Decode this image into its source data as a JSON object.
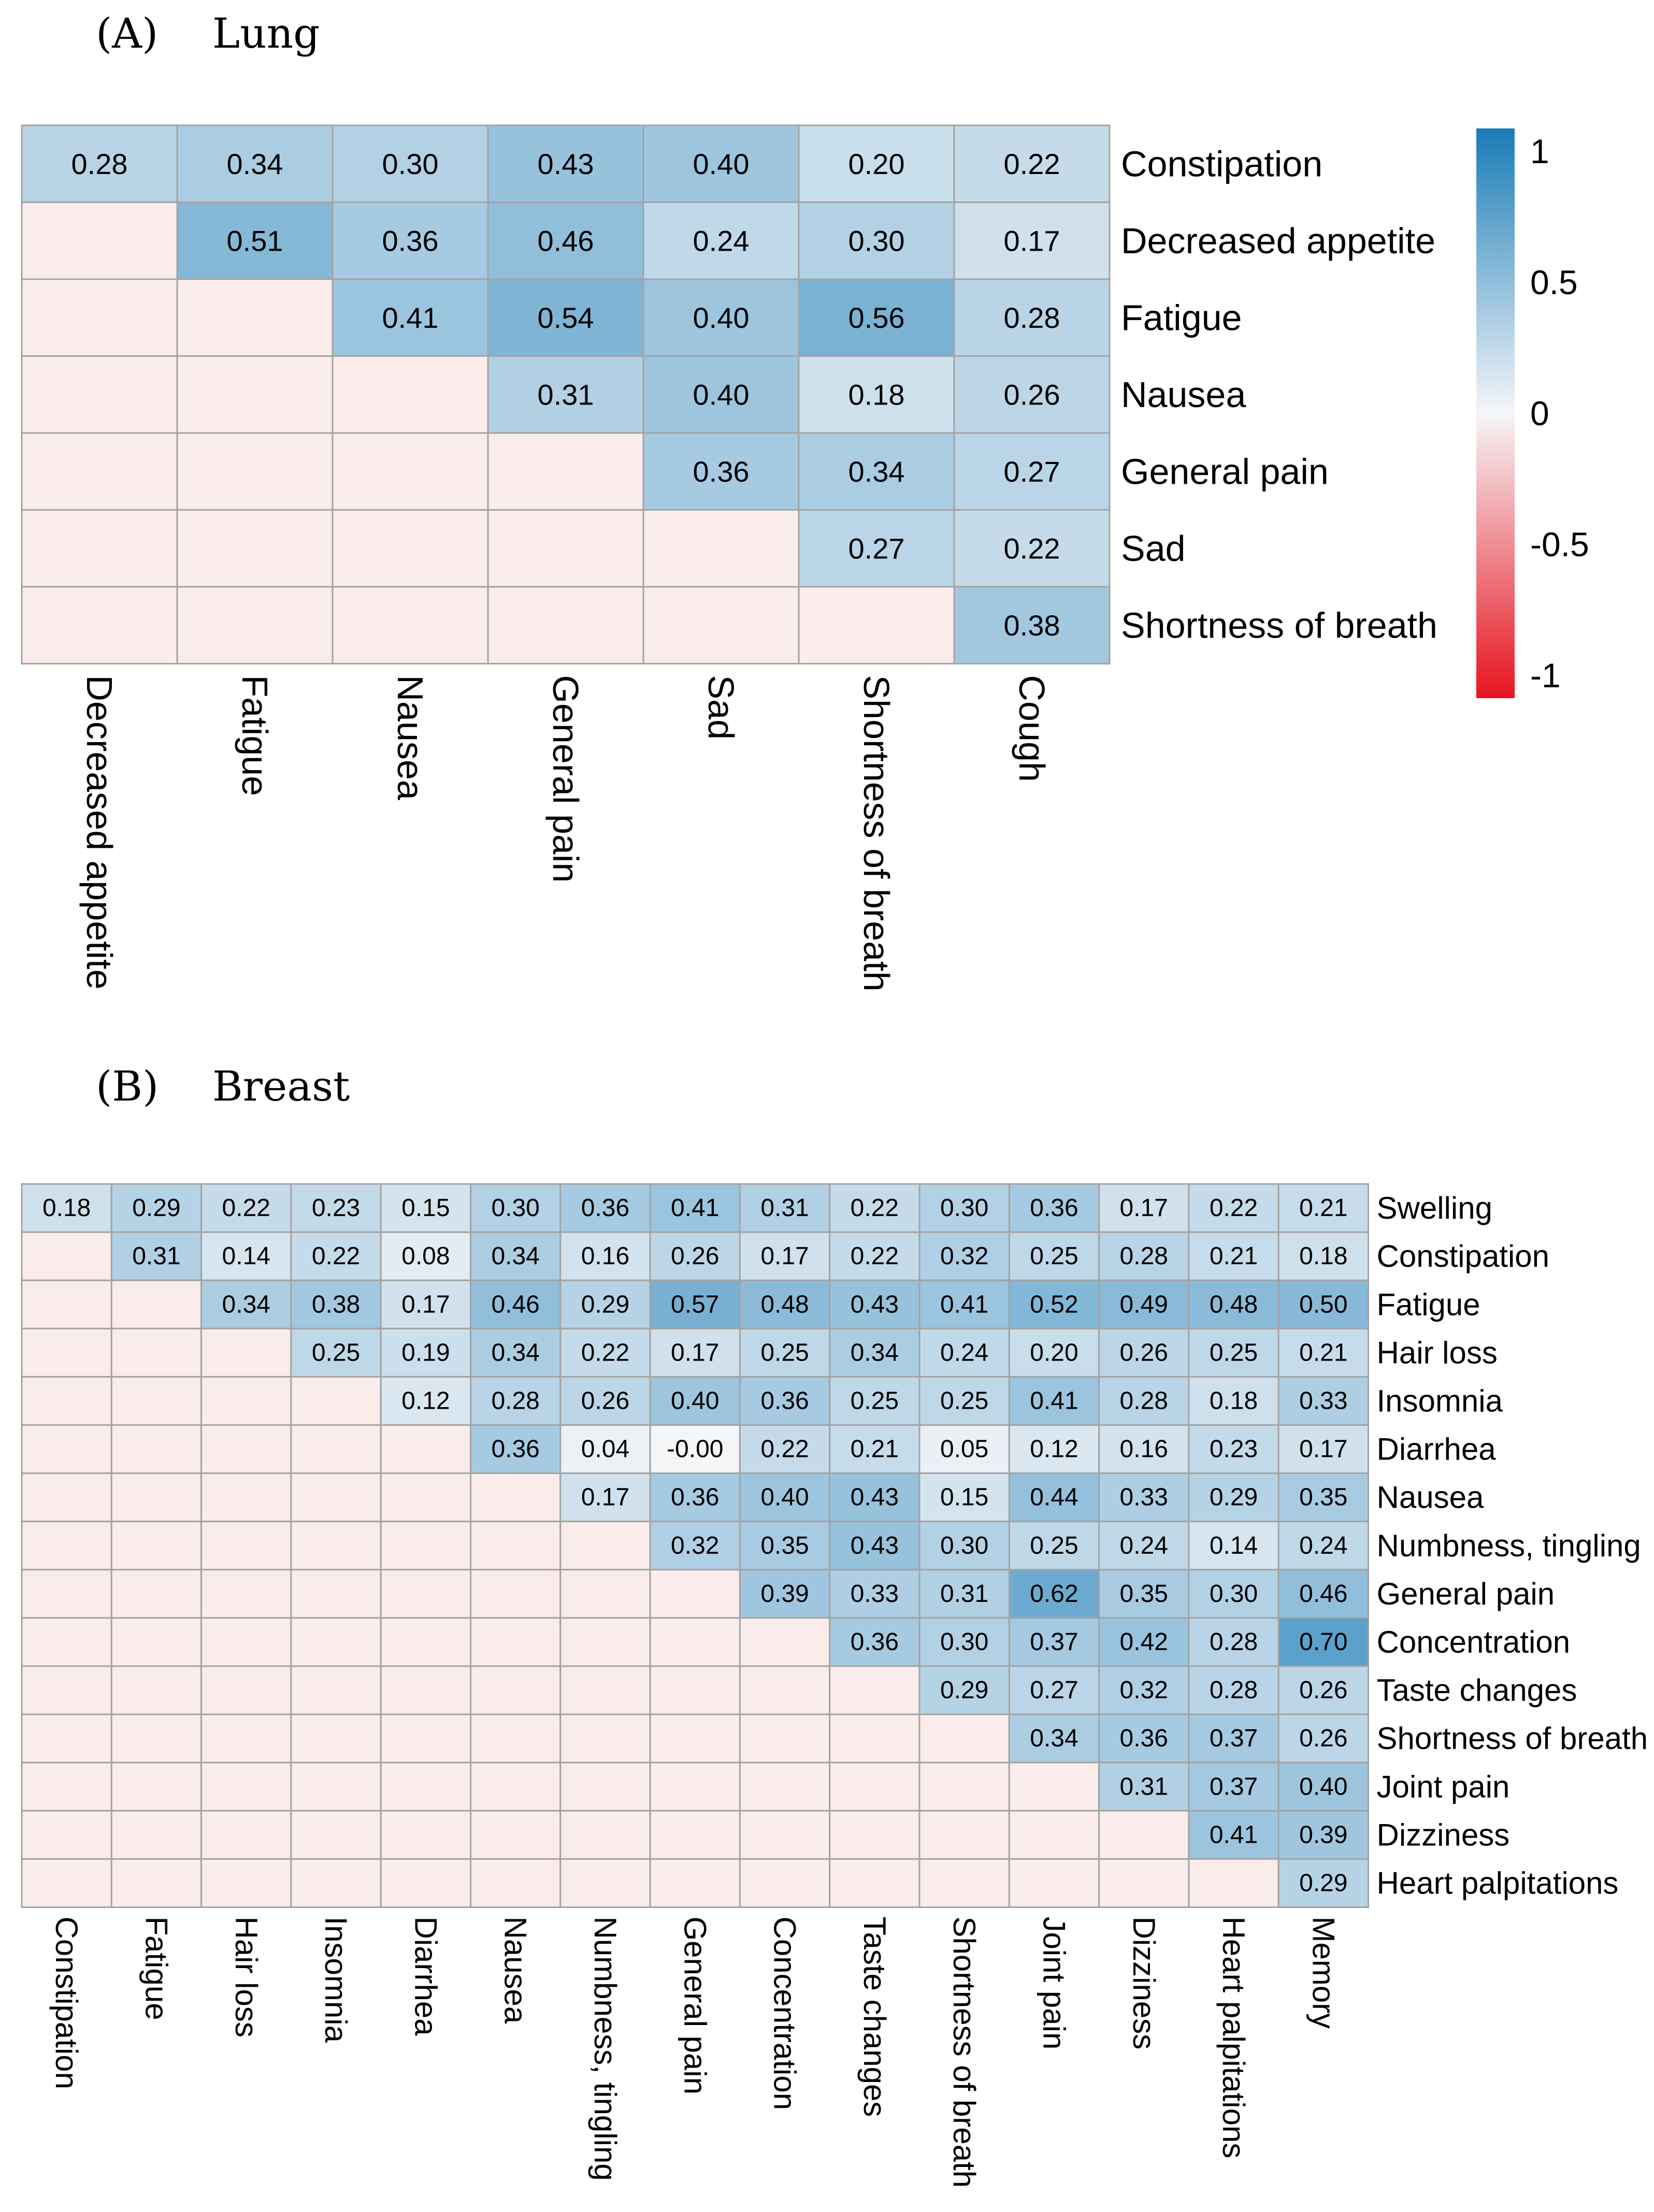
{
  "chart_data": [
    {
      "type": "heatmap",
      "panel_letter": "(A)",
      "panel_title": "Lung",
      "row_labels": [
        "Constipation",
        "Decreased appetite",
        "Fatigue",
        "Nausea",
        "General pain",
        "Sad",
        "Shortness of breath"
      ],
      "col_labels": [
        "Decreased appetite",
        "Fatigue",
        "Nausea",
        "General pain",
        "Sad",
        "Shortness of breath",
        "Cough"
      ],
      "values": [
        [
          0.28,
          0.34,
          0.3,
          0.43,
          0.4,
          0.2,
          0.22
        ],
        [
          null,
          0.51,
          0.36,
          0.46,
          0.24,
          0.3,
          0.17
        ],
        [
          null,
          null,
          0.41,
          0.54,
          0.4,
          0.56,
          0.28
        ],
        [
          null,
          null,
          null,
          0.31,
          0.4,
          0.18,
          0.26
        ],
        [
          null,
          null,
          null,
          null,
          0.36,
          0.34,
          0.27
        ],
        [
          null,
          null,
          null,
          null,
          null,
          0.27,
          0.22
        ],
        [
          null,
          null,
          null,
          null,
          null,
          null,
          0.38
        ]
      ],
      "value_labels": [
        [
          "0.28",
          "0.34",
          "0.30",
          "0.43",
          "0.40",
          "0.20",
          "0.22"
        ],
        [
          null,
          "0.51",
          "0.36",
          "0.46",
          "0.24",
          "0.30",
          "0.17"
        ],
        [
          null,
          null,
          "0.41",
          "0.54",
          "0.40",
          "0.56",
          "0.28"
        ],
        [
          null,
          null,
          null,
          "0.31",
          "0.40",
          "0.18",
          "0.26"
        ],
        [
          null,
          null,
          null,
          null,
          "0.36",
          "0.34",
          "0.27"
        ],
        [
          null,
          null,
          null,
          null,
          null,
          "0.27",
          "0.22"
        ],
        [
          null,
          null,
          null,
          null,
          null,
          null,
          "0.38"
        ]
      ],
      "legend": {
        "min": -1,
        "max": 1,
        "tick_values": [
          1,
          0.5,
          0,
          -0.5,
          -1
        ],
        "tick_labels": [
          "1",
          "0.5",
          "0",
          "-0.5",
          "-1"
        ],
        "placement": "right"
      }
    },
    {
      "type": "heatmap",
      "panel_letter": "(B)",
      "panel_title": "Breast",
      "row_labels": [
        "Swelling",
        "Constipation",
        "Fatigue",
        "Hair loss",
        "Insomnia",
        "Diarrhea",
        "Nausea",
        "Numbness, tingling",
        "General pain",
        "Concentration",
        "Taste changes",
        "Shortness of breath",
        "Joint pain",
        "Dizziness",
        "Heart palpitations"
      ],
      "col_labels": [
        "Constipation",
        "Fatigue",
        "Hair loss",
        "Insomnia",
        "Diarrhea",
        "Nausea",
        "Numbness, tingling",
        "General pain",
        "Concentration",
        "Taste changes",
        "Shortness of breath",
        "Joint pain",
        "Dizziness",
        "Heart palpitations",
        "Memory"
      ],
      "values": [
        [
          0.18,
          0.29,
          0.22,
          0.23,
          0.15,
          0.3,
          0.36,
          0.41,
          0.31,
          0.22,
          0.3,
          0.36,
          0.17,
          0.22,
          0.21
        ],
        [
          null,
          0.31,
          0.14,
          0.22,
          0.08,
          0.34,
          0.16,
          0.26,
          0.17,
          0.22,
          0.32,
          0.25,
          0.28,
          0.21,
          0.18
        ],
        [
          null,
          null,
          0.34,
          0.38,
          0.17,
          0.46,
          0.29,
          0.57,
          0.48,
          0.43,
          0.41,
          0.52,
          0.49,
          0.48,
          0.5
        ],
        [
          null,
          null,
          null,
          0.25,
          0.19,
          0.34,
          0.22,
          0.17,
          0.25,
          0.34,
          0.24,
          0.2,
          0.26,
          0.25,
          0.21
        ],
        [
          null,
          null,
          null,
          null,
          0.12,
          0.28,
          0.26,
          0.4,
          0.36,
          0.25,
          0.25,
          0.41,
          0.28,
          0.18,
          0.33
        ],
        [
          null,
          null,
          null,
          null,
          null,
          0.36,
          0.04,
          -0.0,
          0.22,
          0.21,
          0.05,
          0.12,
          0.16,
          0.23,
          0.17
        ],
        [
          null,
          null,
          null,
          null,
          null,
          null,
          0.17,
          0.36,
          0.4,
          0.43,
          0.15,
          0.44,
          0.33,
          0.29,
          0.35
        ],
        [
          null,
          null,
          null,
          null,
          null,
          null,
          null,
          0.32,
          0.35,
          0.43,
          0.3,
          0.25,
          0.24,
          0.14,
          0.24
        ],
        [
          null,
          null,
          null,
          null,
          null,
          null,
          null,
          null,
          0.39,
          0.33,
          0.31,
          0.62,
          0.35,
          0.3,
          0.46
        ],
        [
          null,
          null,
          null,
          null,
          null,
          null,
          null,
          null,
          null,
          0.36,
          0.3,
          0.37,
          0.42,
          0.28,
          0.7
        ],
        [
          null,
          null,
          null,
          null,
          null,
          null,
          null,
          null,
          null,
          null,
          0.29,
          0.27,
          0.32,
          0.28,
          0.26
        ],
        [
          null,
          null,
          null,
          null,
          null,
          null,
          null,
          null,
          null,
          null,
          null,
          0.34,
          0.36,
          0.37,
          0.26
        ],
        [
          null,
          null,
          null,
          null,
          null,
          null,
          null,
          null,
          null,
          null,
          null,
          null,
          0.31,
          0.37,
          0.4
        ],
        [
          null,
          null,
          null,
          null,
          null,
          null,
          null,
          null,
          null,
          null,
          null,
          null,
          null,
          0.41,
          0.39
        ],
        [
          null,
          null,
          null,
          null,
          null,
          null,
          null,
          null,
          null,
          null,
          null,
          null,
          null,
          null,
          0.29
        ]
      ],
      "value_labels": [
        [
          "0.18",
          "0.29",
          "0.22",
          "0.23",
          "0.15",
          "0.30",
          "0.36",
          "0.41",
          "0.31",
          "0.22",
          "0.30",
          "0.36",
          "0.17",
          "0.22",
          "0.21"
        ],
        [
          null,
          "0.31",
          "0.14",
          "0.22",
          "0.08",
          "0.34",
          "0.16",
          "0.26",
          "0.17",
          "0.22",
          "0.32",
          "0.25",
          "0.28",
          "0.21",
          "0.18"
        ],
        [
          null,
          null,
          "0.34",
          "0.38",
          "0.17",
          "0.46",
          "0.29",
          "0.57",
          "0.48",
          "0.43",
          "0.41",
          "0.52",
          "0.49",
          "0.48",
          "0.50"
        ],
        [
          null,
          null,
          null,
          "0.25",
          "0.19",
          "0.34",
          "0.22",
          "0.17",
          "0.25",
          "0.34",
          "0.24",
          "0.20",
          "0.26",
          "0.25",
          "0.21"
        ],
        [
          null,
          null,
          null,
          null,
          "0.12",
          "0.28",
          "0.26",
          "0.40",
          "0.36",
          "0.25",
          "0.25",
          "0.41",
          "0.28",
          "0.18",
          "0.33"
        ],
        [
          null,
          null,
          null,
          null,
          null,
          "0.36",
          "0.04",
          "-0.00",
          "0.22",
          "0.21",
          "0.05",
          "0.12",
          "0.16",
          "0.23",
          "0.17"
        ],
        [
          null,
          null,
          null,
          null,
          null,
          null,
          "0.17",
          "0.36",
          "0.40",
          "0.43",
          "0.15",
          "0.44",
          "0.33",
          "0.29",
          "0.35"
        ],
        [
          null,
          null,
          null,
          null,
          null,
          null,
          null,
          "0.32",
          "0.35",
          "0.43",
          "0.30",
          "0.25",
          "0.24",
          "0.14",
          "0.24"
        ],
        [
          null,
          null,
          null,
          null,
          null,
          null,
          null,
          null,
          "0.39",
          "0.33",
          "0.31",
          "0.62",
          "0.35",
          "0.30",
          "0.46"
        ],
        [
          null,
          null,
          null,
          null,
          null,
          null,
          null,
          null,
          null,
          "0.36",
          "0.30",
          "0.37",
          "0.42",
          "0.28",
          "0.70"
        ],
        [
          null,
          null,
          null,
          null,
          null,
          null,
          null,
          null,
          null,
          null,
          "0.29",
          "0.27",
          "0.32",
          "0.28",
          "0.26"
        ],
        [
          null,
          null,
          null,
          null,
          null,
          null,
          null,
          null,
          null,
          null,
          null,
          "0.34",
          "0.36",
          "0.37",
          "0.26"
        ],
        [
          null,
          null,
          null,
          null,
          null,
          null,
          null,
          null,
          null,
          null,
          null,
          null,
          "0.31",
          "0.37",
          "0.40"
        ],
        [
          null,
          null,
          null,
          null,
          null,
          null,
          null,
          null,
          null,
          null,
          null,
          null,
          null,
          "0.41",
          "0.39"
        ],
        [
          null,
          null,
          null,
          null,
          null,
          null,
          null,
          null,
          null,
          null,
          null,
          null,
          null,
          null,
          "0.29"
        ]
      ]
    }
  ],
  "colors": {
    "scale_negative": "#e8141f",
    "scale_neutral": "#f5f6f8",
    "scale_positive": "#1a7cb8",
    "empty_cell": "#faeceb",
    "grid_line": "#a3a3a3"
  }
}
